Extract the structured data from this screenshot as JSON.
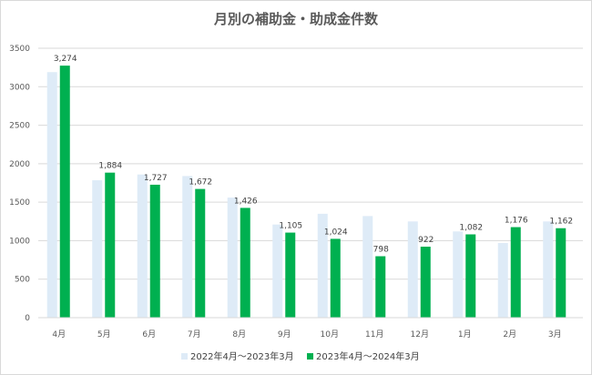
{
  "chart_data": {
    "type": "bar",
    "title": "月別の補助金・助成金件数",
    "categories": [
      "4月",
      "5月",
      "6月",
      "7月",
      "8月",
      "9月",
      "10月",
      "11月",
      "12月",
      "1月",
      "2月",
      "3月"
    ],
    "series": [
      {
        "name": "2022年4月～2023年3月",
        "color": "#deebf7",
        "values": [
          3190,
          1785,
          1860,
          1840,
          1560,
          1210,
          1350,
          1320,
          1250,
          1120,
          970,
          1250
        ],
        "data_labels": false
      },
      {
        "name": "2023年4月～2024年3月",
        "color": "#00b050",
        "values": [
          3274,
          1884,
          1727,
          1672,
          1426,
          1105,
          1024,
          798,
          922,
          1082,
          1176,
          1162
        ],
        "data_labels": true
      }
    ],
    "data_labels": [
      "3,274",
      "1,884",
      "1,727",
      "1,672",
      "1,426",
      "1,105",
      "1,024",
      "798",
      "922",
      "1,082",
      "1,176",
      "1,162"
    ],
    "yticks": [
      "0",
      "500",
      "1000",
      "1500",
      "2000",
      "2500",
      "3000",
      "3500"
    ],
    "ylim": [
      0,
      3500
    ],
    "grid": true,
    "legend_position": "bottom"
  }
}
